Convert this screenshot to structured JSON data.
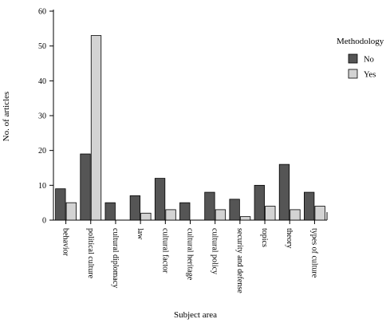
{
  "chart_data": {
    "type": "bar",
    "title": "",
    "xlabel": "Subject area",
    "ylabel": "No. of articles",
    "ylim": [
      0,
      60
    ],
    "yticks": [
      0,
      10,
      20,
      30,
      40,
      50,
      60
    ],
    "grid": false,
    "legend_position": "right",
    "legend_title": "Methodology",
    "categories": [
      "behavior",
      "political culture",
      "cultural diplomacy",
      "law",
      "cultural factor",
      "cultural heritage",
      "cultural policy",
      "security and defense",
      "topics",
      "theory",
      "types of culture"
    ],
    "series": [
      {
        "name": "No",
        "color": "#555555",
        "values": [
          9,
          19,
          5,
          7,
          12,
          5,
          8,
          6,
          10,
          16,
          8
        ]
      },
      {
        "name": "Yes",
        "color": "#d3d3d3",
        "values": [
          5,
          53,
          0,
          2,
          3,
          0,
          3,
          1,
          4,
          3,
          4
        ]
      }
    ]
  }
}
